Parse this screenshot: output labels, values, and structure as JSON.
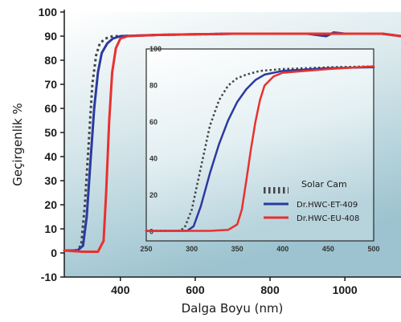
{
  "chart_data": [
    {
      "type": "line",
      "xlabel": "Dalga Boyu (nm)",
      "ylabel": "Geçirgenlik %",
      "xlim": [
        250,
        1150
      ],
      "ylim": [
        -10,
        100
      ],
      "xticks": [
        400,
        600,
        800,
        1000
      ],
      "yticks": [
        -10,
        0,
        10,
        20,
        30,
        40,
        50,
        60,
        70,
        80,
        90,
        100
      ],
      "background": "gradient white-to-teal",
      "grid": false,
      "series": [
        {
          "name": "Solar Cam",
          "color": "#444444",
          "style": "dotted",
          "x": [
            250,
            280,
            295,
            305,
            315,
            325,
            335,
            345,
            360,
            380,
            400,
            500,
            700,
            900,
            1000,
            1100,
            1150
          ],
          "y": [
            1,
            1,
            3,
            20,
            45,
            70,
            82,
            87,
            89,
            90,
            90,
            90.5,
            91,
            91,
            91,
            91,
            90
          ]
        },
        {
          "name": "Dr.HWC-ET-409",
          "color": "#2b3aa0",
          "style": "solid",
          "x": [
            250,
            285,
            300,
            310,
            320,
            330,
            340,
            350,
            365,
            380,
            400,
            500,
            700,
            900,
            950,
            970,
            1000,
            1100,
            1150
          ],
          "y": [
            1,
            1,
            3,
            15,
            38,
            60,
            75,
            83,
            87,
            89,
            90,
            90.5,
            91,
            91,
            90,
            91.5,
            91,
            91,
            90
          ]
        },
        {
          "name": "Dr.HWC-EU-408",
          "color": "#e8312f",
          "style": "solid",
          "x": [
            250,
            300,
            340,
            355,
            362,
            370,
            378,
            388,
            400,
            420,
            500,
            700,
            900,
            1000,
            1100,
            1150
          ],
          "y": [
            1,
            0.5,
            0.5,
            5,
            25,
            55,
            75,
            85,
            89,
            90,
            90.5,
            91,
            91,
            91,
            91,
            90
          ]
        }
      ]
    },
    {
      "type": "line",
      "inset": true,
      "xlim": [
        250,
        500
      ],
      "ylim": [
        -5,
        100
      ],
      "xticks": [
        250,
        300,
        350,
        400,
        450,
        500
      ],
      "yticks": [
        0,
        20,
        40,
        60,
        80,
        100
      ],
      "legend_position": "bottom-right",
      "series": [
        {
          "name": "Solar Cam",
          "color": "#444444",
          "style": "dotted",
          "x": [
            250,
            285,
            292,
            300,
            310,
            320,
            330,
            340,
            350,
            360,
            375,
            400,
            450,
            500
          ],
          "y": [
            0.5,
            0.5,
            2,
            12,
            35,
            58,
            72,
            80,
            84,
            86,
            88,
            89,
            90,
            90.5
          ]
        },
        {
          "name": "Dr.HWC-ET-409",
          "color": "#2b3aa0",
          "style": "solid",
          "x": [
            250,
            295,
            302,
            310,
            320,
            330,
            340,
            350,
            360,
            370,
            380,
            400,
            450,
            500
          ],
          "y": [
            0.5,
            0.5,
            3,
            14,
            32,
            48,
            61,
            71,
            78,
            83,
            86,
            88,
            89.5,
            90
          ]
        },
        {
          "name": "Dr.HWC-EU-408",
          "color": "#e8312f",
          "style": "solid",
          "x": [
            250,
            320,
            340,
            350,
            355,
            360,
            365,
            370,
            375,
            380,
            390,
            400,
            450,
            500
          ],
          "y": [
            0.5,
            0.5,
            1,
            4,
            12,
            28,
            45,
            60,
            72,
            80,
            85,
            87,
            89,
            90.5
          ]
        }
      ]
    }
  ]
}
